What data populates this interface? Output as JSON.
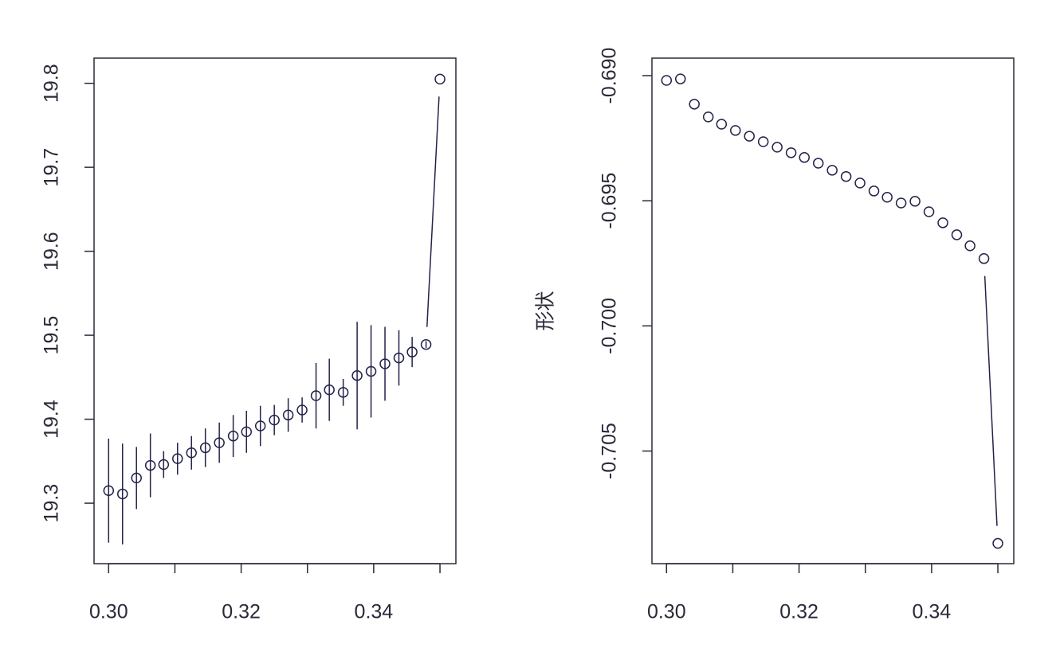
{
  "chart_data": [
    {
      "type": "errorbar",
      "color": "#23234a",
      "x": [
        0.3,
        0.3021,
        0.3042,
        0.3063,
        0.3083,
        0.3104,
        0.3125,
        0.3146,
        0.3167,
        0.3188,
        0.3208,
        0.3229,
        0.325,
        0.3271,
        0.3292,
        0.3313,
        0.3333,
        0.3354,
        0.3375,
        0.3396,
        0.3417,
        0.3438,
        0.3458,
        0.3479,
        0.35
      ],
      "values": [
        19.315,
        19.311,
        19.33,
        19.345,
        19.346,
        19.353,
        19.36,
        19.366,
        19.372,
        19.38,
        19.385,
        19.392,
        19.399,
        19.405,
        19.411,
        19.428,
        19.435,
        19.432,
        19.452,
        19.457,
        19.466,
        19.473,
        19.48,
        19.489,
        19.805
      ],
      "errors": [
        0.062,
        0.06,
        0.037,
        0.038,
        0.016,
        0.019,
        0.02,
        0.023,
        0.024,
        0.025,
        0.025,
        0.024,
        0.018,
        0.02,
        0.015,
        0.039,
        0.037,
        0.016,
        0.064,
        0.055,
        0.044,
        0.033,
        0.018,
        0.004,
        0
      ],
      "xlim": [
        0.2978,
        0.3524
      ],
      "ylim": [
        19.228,
        19.83
      ],
      "xticks": [
        {
          "value": 0.3,
          "label": "0.30"
        },
        {
          "value": 0.31,
          "label": null
        },
        {
          "value": 0.32,
          "label": "0.32"
        },
        {
          "value": 0.33,
          "label": null
        },
        {
          "value": 0.34,
          "label": "0.34"
        },
        {
          "value": 0.35,
          "label": null
        }
      ],
      "yticks": [
        19.3,
        19.4,
        19.5,
        19.6,
        19.7,
        19.8
      ]
    },
    {
      "type": "scatter",
      "color": "#23234a",
      "ylabel": "形状",
      "x": [
        0.3,
        0.3021,
        0.3042,
        0.3063,
        0.3083,
        0.3104,
        0.3125,
        0.3146,
        0.3167,
        0.3188,
        0.3208,
        0.3229,
        0.325,
        0.3271,
        0.3292,
        0.3313,
        0.3333,
        0.3354,
        0.3375,
        0.3396,
        0.3417,
        0.3438,
        0.3458,
        0.3479,
        0.35
      ],
      "values": [
        -0.69019,
        -0.69013,
        -0.69114,
        -0.69165,
        -0.69194,
        -0.69219,
        -0.69242,
        -0.69264,
        -0.69286,
        -0.69308,
        -0.69327,
        -0.6935,
        -0.69378,
        -0.69403,
        -0.69429,
        -0.69461,
        -0.69486,
        -0.69509,
        -0.69502,
        -0.69544,
        -0.69588,
        -0.69636,
        -0.6968,
        -0.69731,
        -0.70869
      ],
      "xlim": [
        0.2978,
        0.3524
      ],
      "ylim": [
        -0.7095,
        -0.6893
      ],
      "xticks": [
        {
          "value": 0.3,
          "label": "0.30"
        },
        {
          "value": 0.31,
          "label": null
        },
        {
          "value": 0.32,
          "label": "0.32"
        },
        {
          "value": 0.33,
          "label": null
        },
        {
          "value": 0.34,
          "label": "0.34"
        },
        {
          "value": 0.35,
          "label": null
        }
      ],
      "yticks": [
        {
          "value": -0.69,
          "label": "-0.690"
        },
        -0.695,
        {
          "value": -0.7,
          "label": "-0.700"
        },
        -0.705
      ]
    }
  ]
}
